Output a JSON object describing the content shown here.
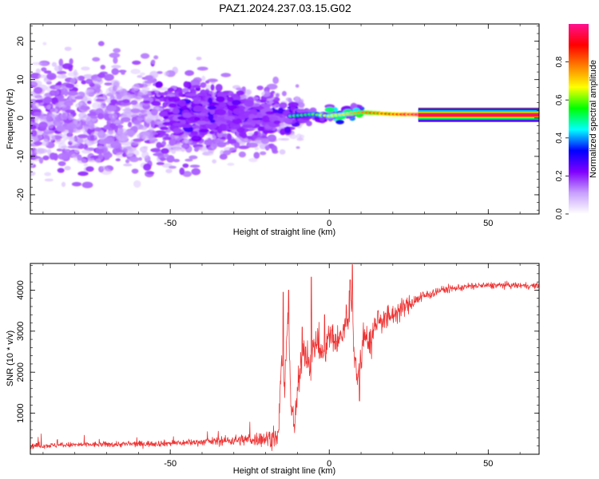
{
  "title": "PAZ1.2024.237.03.15.G02",
  "chart_data": [
    {
      "type": "heatmap",
      "xlabel": "Height of straight line (km)",
      "ylabel": "Frequency (Hz)",
      "xlim": [
        -94,
        66
      ],
      "ylim": [
        -25,
        24.5
      ],
      "xticks": [
        -50,
        0,
        50
      ],
      "yticks": [
        -20,
        -10,
        0,
        10,
        20
      ],
      "colorbar": {
        "label": "Normalized spectral amplitude",
        "range": [
          0,
          1
        ],
        "ticks": [
          "0.0",
          "0.2",
          "0.4",
          "0.6",
          "0.8"
        ],
        "colors": [
          "#ffffff",
          "#c8a0ff",
          "#8000ff",
          "#0000ff",
          "#00ffff",
          "#00ff00",
          "#ffff00",
          "#ff8000",
          "#ff0000",
          "#ff1090"
        ]
      },
      "ridge": {
        "points": [
          [
            -30,
            1.5
          ],
          [
            -20,
            0
          ],
          [
            -12,
            0.5
          ],
          [
            -5,
            1
          ],
          [
            0,
            0.5
          ],
          [
            5,
            1
          ],
          [
            10,
            1.5
          ],
          [
            20,
            1
          ],
          [
            35,
            0.8
          ],
          [
            50,
            0.8
          ],
          [
            66,
            0.8
          ]
        ],
        "note_color": "#ff0000"
      },
      "grid": false
    },
    {
      "type": "line",
      "xlabel": "Height of straight line (km)",
      "ylabel": "SNR (10 * v/v)",
      "xlim": [
        -94,
        66
      ],
      "ylim": [
        0,
        4650
      ],
      "xticks": [
        -50,
        0,
        50
      ],
      "yticks": [
        1000,
        2000,
        3000,
        4000
      ],
      "series": [
        {
          "color": "#ee3333",
          "profile": [
            [
              -94,
              200
            ],
            [
              -80,
              230
            ],
            [
              -60,
              250
            ],
            [
              -45,
              280
            ],
            [
              -35,
              320
            ],
            [
              -25,
              360
            ],
            [
              -16,
              400
            ],
            [
              -15,
              2400
            ],
            [
              -14,
              1400
            ],
            [
              -13,
              3600
            ],
            [
              -12,
              1200
            ],
            [
              -11,
              600
            ],
            [
              -10,
              1500
            ],
            [
              -8,
              2600
            ],
            [
              -6,
              2200
            ],
            [
              -4,
              2800
            ],
            [
              -2,
              2400
            ],
            [
              0,
              2900
            ],
            [
              3,
              2700
            ],
            [
              5,
              3200
            ],
            [
              7,
              3700
            ],
            [
              8,
              2400
            ],
            [
              9,
              1800
            ],
            [
              11,
              3000
            ],
            [
              13,
              2700
            ],
            [
              15,
              3300
            ],
            [
              18,
              3300
            ],
            [
              22,
              3500
            ],
            [
              28,
              3800
            ],
            [
              35,
              4000
            ],
            [
              45,
              4100
            ],
            [
              55,
              4120
            ],
            [
              66,
              4100
            ]
          ],
          "noise": [
            [
              -94,
              60
            ],
            [
              -40,
              80
            ],
            [
              -25,
              150
            ],
            [
              -16,
              250
            ],
            [
              -10,
              400
            ],
            [
              0,
              400
            ],
            [
              10,
              450
            ],
            [
              15,
              350
            ],
            [
              25,
              200
            ],
            [
              35,
              90
            ],
            [
              66,
              70
            ]
          ],
          "spikes": [
            [
              -14.5,
              3950
            ],
            [
              -13.7,
              2300
            ],
            [
              -12.8,
              4000
            ],
            [
              -5.6,
              4320
            ],
            [
              7.3,
              4620
            ],
            [
              6.6,
              4250
            ],
            [
              -8.5,
              3100
            ],
            [
              9.5,
              1300
            ],
            [
              -1.5,
              3400
            ]
          ]
        }
      ],
      "grid": false
    }
  ]
}
